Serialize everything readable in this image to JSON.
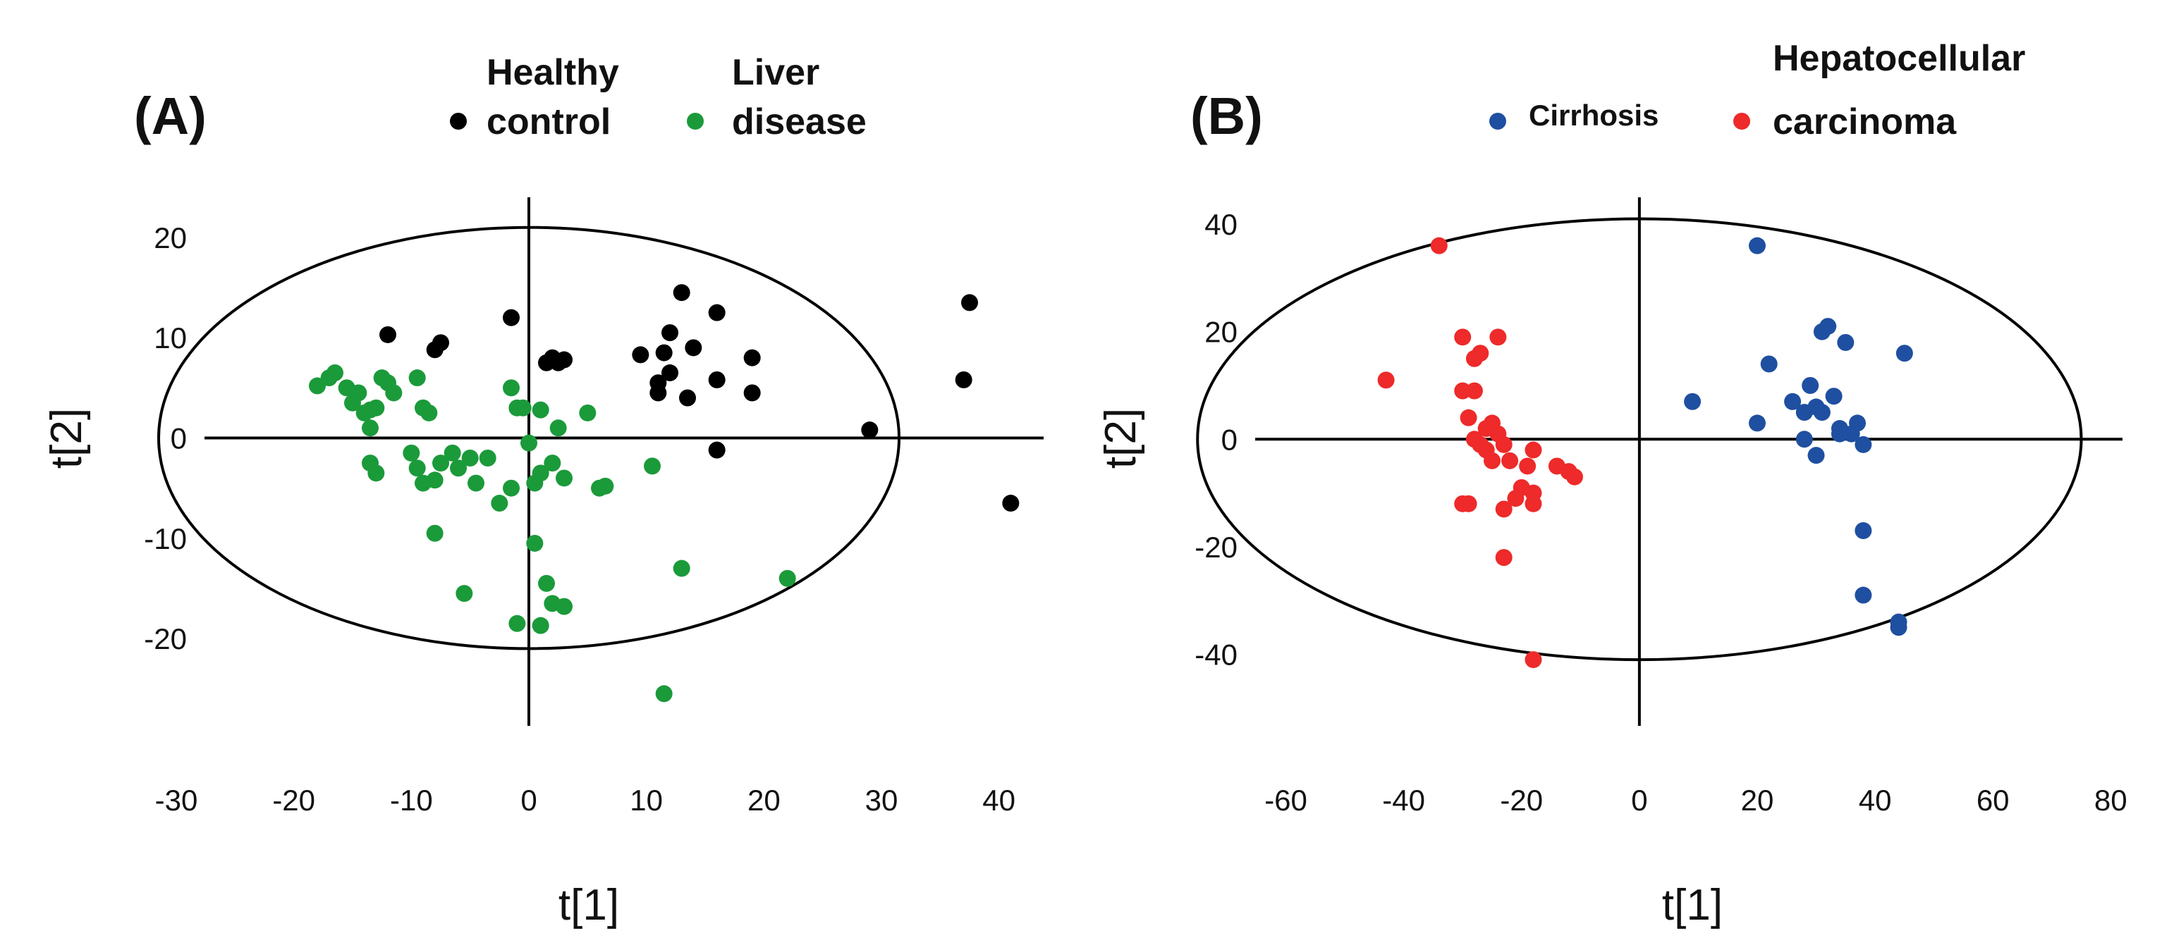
{
  "chart_data": [
    {
      "type": "scatter",
      "panel_label": "(A)",
      "xlabel": "t[1]",
      "ylabel": "t[2]",
      "xlim": [
        -30,
        42
      ],
      "ylim": [
        -28,
        24
      ],
      "x_ticks": [
        "-30",
        "-20",
        "-10",
        "0",
        "10",
        "20",
        "30",
        "40"
      ],
      "y_ticks": [
        "20",
        "10",
        "0",
        "-10",
        "-20"
      ],
      "x_tick_values": [
        -30,
        -20,
        -10,
        0,
        10,
        20,
        30,
        40
      ],
      "y_tick_values": [
        20,
        10,
        0,
        -10,
        -20
      ],
      "ellipse": {
        "cx": 0,
        "cy": 0,
        "rx": 31.5,
        "ry": 21
      },
      "legend": [
        {
          "name_lines": [
            "Healthy",
            "control"
          ],
          "color": "#000000"
        },
        {
          "name_lines": [
            "Liver",
            "disease"
          ],
          "color": "#1b9a3a"
        }
      ],
      "series": [
        {
          "name": "Healthy control",
          "color": "#000000",
          "points": [
            [
              -12,
              10.3
            ],
            [
              -8,
              8.8
            ],
            [
              -7.5,
              9.5
            ],
            [
              -1.5,
              12
            ],
            [
              1.5,
              7.5
            ],
            [
              2,
              8
            ],
            [
              2.5,
              7.5
            ],
            [
              3,
              7.8
            ],
            [
              9.5,
              8.3
            ],
            [
              11,
              5.5
            ],
            [
              11,
              4.5
            ],
            [
              11.5,
              8.5
            ],
            [
              12,
              10.5
            ],
            [
              12,
              6.5
            ],
            [
              13,
              14.5
            ],
            [
              13.5,
              4
            ],
            [
              14,
              9
            ],
            [
              16,
              12.5
            ],
            [
              16,
              5.8
            ],
            [
              19,
              8
            ],
            [
              19,
              4.5
            ],
            [
              16,
              -1.2
            ],
            [
              29,
              0.8
            ],
            [
              37,
              5.8
            ],
            [
              37.5,
              13.5
            ],
            [
              41,
              -6.5
            ]
          ]
        },
        {
          "name": "Liver disease",
          "color": "#1b9a3a",
          "points": [
            [
              -18,
              5.2
            ],
            [
              -17,
              6
            ],
            [
              -16.5,
              6.5
            ],
            [
              -15.5,
              5
            ],
            [
              -15,
              3.5
            ],
            [
              -14.5,
              4.5
            ],
            [
              -14,
              2.5
            ],
            [
              -13.5,
              2.8
            ],
            [
              -13,
              3
            ],
            [
              -12.5,
              6
            ],
            [
              -12,
              5.5
            ],
            [
              -11.5,
              4.5
            ],
            [
              -13.5,
              1
            ],
            [
              -9.5,
              6
            ],
            [
              -9,
              3
            ],
            [
              -8.5,
              2.5
            ],
            [
              -13.5,
              -2.5
            ],
            [
              -13,
              -3.5
            ],
            [
              -10,
              -1.5
            ],
            [
              -9.5,
              -3
            ],
            [
              -9,
              -4.5
            ],
            [
              -8,
              -4.2
            ],
            [
              -7.5,
              -2.5
            ],
            [
              -6.5,
              -1.5
            ],
            [
              -6,
              -3
            ],
            [
              -5,
              -2
            ],
            [
              -4.5,
              -4.5
            ],
            [
              -3.5,
              -2
            ],
            [
              -2.5,
              -6.5
            ],
            [
              -1.5,
              -5
            ],
            [
              -1.5,
              5
            ],
            [
              -1,
              3
            ],
            [
              -0.5,
              3
            ],
            [
              0,
              -0.5
            ],
            [
              0.5,
              -4.5
            ],
            [
              1,
              -3.5
            ],
            [
              1,
              2.8
            ],
            [
              2,
              -2.5
            ],
            [
              2.5,
              1
            ],
            [
              3,
              -4
            ],
            [
              5,
              2.5
            ],
            [
              6,
              -5
            ],
            [
              6.5,
              -4.8
            ],
            [
              -8,
              -9.5
            ],
            [
              0.5,
              -10.5
            ],
            [
              -5.5,
              -15.5
            ],
            [
              1.5,
              -14.5
            ],
            [
              2,
              -16.5
            ],
            [
              3,
              -16.8
            ],
            [
              -1,
              -18.5
            ],
            [
              1,
              -18.7
            ],
            [
              10.5,
              -2.8
            ],
            [
              13,
              -13
            ],
            [
              22,
              -14
            ],
            [
              11.5,
              -25.5
            ]
          ]
        }
      ]
    },
    {
      "type": "scatter",
      "panel_label": "(B)",
      "xlabel": "t[1]",
      "ylabel": "t[2]",
      "xlim": [
        -70,
        82
      ],
      "ylim": [
        -52,
        45
      ],
      "x_ticks": [
        "-60",
        "-40",
        "-20",
        "0",
        "20",
        "40",
        "60",
        "80"
      ],
      "y_ticks": [
        "40",
        "20",
        "0",
        "-20",
        "-40"
      ],
      "x_tick_values": [
        -60,
        -40,
        -20,
        0,
        20,
        40,
        60,
        80
      ],
      "y_tick_values": [
        40,
        20,
        0,
        -20,
        -40
      ],
      "ellipse": {
        "cx": 0,
        "cy": 0,
        "rx": 75,
        "ry": 41
      },
      "legend": [
        {
          "name_lines": [
            "Cirrhosis"
          ],
          "color": "#1f4fa0"
        },
        {
          "name_lines": [
            "Hepatocellular",
            "carcinoma"
          ],
          "color": "#ee2a2a"
        }
      ],
      "series": [
        {
          "name": "Cirrhosis",
          "color": "#1f4fa0",
          "points": [
            [
              20,
              36
            ],
            [
              32,
              21
            ],
            [
              31,
              20
            ],
            [
              35,
              18
            ],
            [
              45,
              16
            ],
            [
              9,
              7
            ],
            [
              22,
              14
            ],
            [
              20,
              3
            ],
            [
              26,
              7
            ],
            [
              28,
              5
            ],
            [
              29,
              10
            ],
            [
              30,
              6
            ],
            [
              31,
              5
            ],
            [
              33,
              8
            ],
            [
              34,
              2
            ],
            [
              34,
              1
            ],
            [
              36,
              1
            ],
            [
              37,
              3
            ],
            [
              38,
              -1
            ],
            [
              28,
              0
            ],
            [
              30,
              -3
            ],
            [
              38,
              -17
            ],
            [
              38,
              -29
            ],
            [
              44,
              -34
            ],
            [
              44,
              -35
            ]
          ]
        },
        {
          "name": "Hepatocellular carcinoma",
          "color": "#ee2a2a",
          "points": [
            [
              -34,
              36
            ],
            [
              -43,
              11
            ],
            [
              -30,
              19
            ],
            [
              -28,
              15
            ],
            [
              -27,
              16
            ],
            [
              -24,
              19
            ],
            [
              -30,
              9
            ],
            [
              -28,
              9
            ],
            [
              -29,
              4
            ],
            [
              -26,
              2
            ],
            [
              -25,
              3
            ],
            [
              -24,
              1
            ],
            [
              -28,
              0
            ],
            [
              -27,
              -1
            ],
            [
              -26,
              -2
            ],
            [
              -23,
              -1
            ],
            [
              -22,
              -4
            ],
            [
              -19,
              -5
            ],
            [
              -18,
              -2
            ],
            [
              -14,
              -5
            ],
            [
              -12,
              -6
            ],
            [
              -11,
              -7
            ],
            [
              -25,
              -4
            ],
            [
              -20,
              -9
            ],
            [
              -18,
              -10
            ],
            [
              -29,
              -12
            ],
            [
              -30,
              -12
            ],
            [
              -23,
              -13
            ],
            [
              -21,
              -11
            ],
            [
              -18,
              -12
            ],
            [
              -23,
              -22
            ],
            [
              -18,
              -41
            ]
          ]
        }
      ]
    }
  ]
}
